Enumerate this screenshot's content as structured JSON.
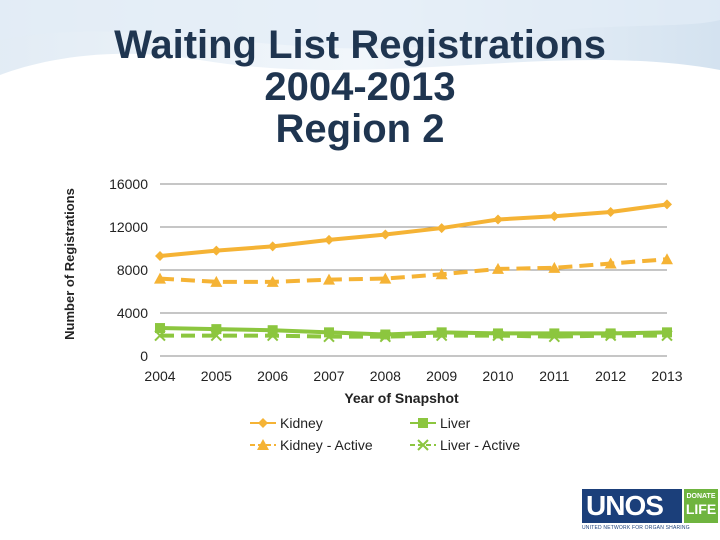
{
  "title": {
    "line1": "Waiting List Registrations",
    "line2": "2004-2013",
    "line3": "Region 2"
  },
  "chart_data": {
    "type": "line",
    "xlabel": "Year of Snapshot",
    "ylabel": "Number of Registrations",
    "x": [
      "2004",
      "2005",
      "2006",
      "2007",
      "2008",
      "2009",
      "2010",
      "2011",
      "2012",
      "2013"
    ],
    "ylim": [
      0,
      16000
    ],
    "yticks": [
      0,
      4000,
      8000,
      12000,
      16000
    ],
    "grid": true,
    "legend_position": "bottom",
    "series": [
      {
        "name": "Kidney",
        "color": "#f5b335",
        "marker": "diamond",
        "dash": "solid",
        "values": [
          9300,
          9800,
          10200,
          10800,
          11300,
          11900,
          12700,
          13000,
          13400,
          14100
        ]
      },
      {
        "name": "Kidney - Active",
        "color": "#f5b335",
        "marker": "triangle",
        "dash": "dashed",
        "values": [
          7200,
          6900,
          6900,
          7100,
          7200,
          7600,
          8100,
          8200,
          8600,
          9000
        ]
      },
      {
        "name": "Liver",
        "color": "#8cc63f",
        "marker": "square",
        "dash": "solid",
        "values": [
          2600,
          2500,
          2400,
          2200,
          2000,
          2200,
          2100,
          2100,
          2100,
          2200
        ]
      },
      {
        "name": "Liver - Active",
        "color": "#8cc63f",
        "marker": "x",
        "dash": "dashed",
        "values": [
          1900,
          1900,
          1900,
          1800,
          1800,
          1900,
          1900,
          1800,
          1900,
          1900
        ]
      }
    ]
  },
  "logo": {
    "name": "UNOS",
    "badge_top": "DONATE",
    "badge_bottom": "LIFE",
    "tagline": "UNITED NETWORK FOR ORGAN SHARING"
  }
}
